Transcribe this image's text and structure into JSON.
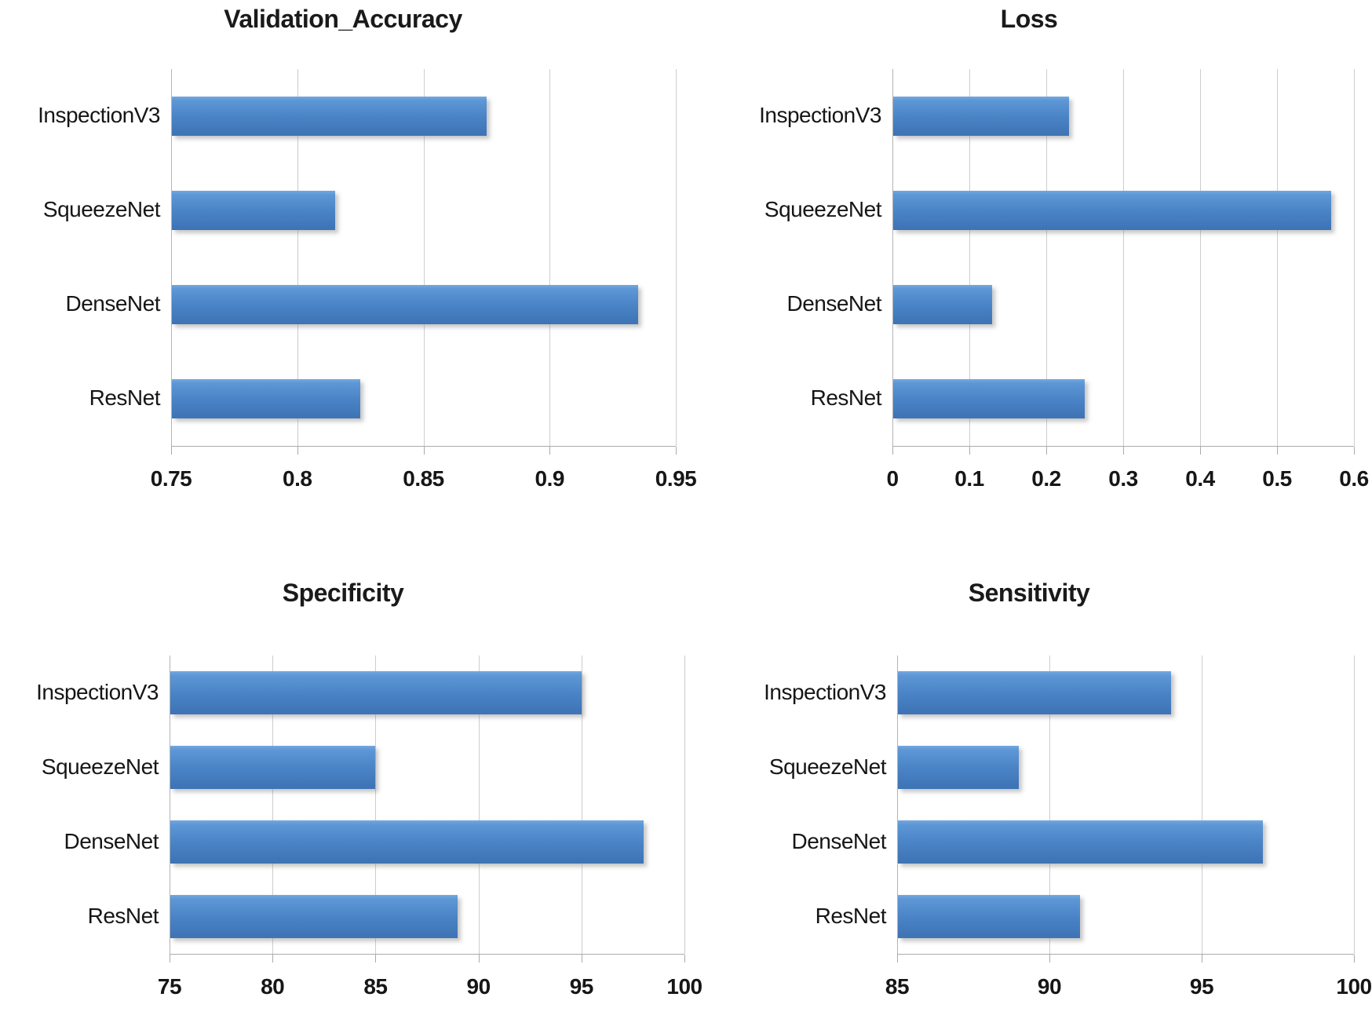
{
  "page_background": "#FFFFFF",
  "colors": {
    "bar_fill_top": "#74A8DE",
    "bar_fill_mid": "#4A84C6",
    "bar_fill_bottom": "#3E74B4",
    "gridline": "#CDCDCD",
    "axis_line": "#ABABAB",
    "text": "#1A1A1A"
  },
  "chart_data": [
    {
      "type": "bar",
      "orientation": "horizontal",
      "title": "Validation_Accuracy",
      "categories": [
        "InspectionV3",
        "SqueezeNet",
        "DenseNet",
        "ResNet"
      ],
      "values": [
        0.875,
        0.815,
        0.935,
        0.825
      ],
      "xlim": [
        0.75,
        0.95
      ],
      "tick_values": [
        0.75,
        0.8,
        0.85,
        0.9,
        0.95
      ],
      "tick_labels": [
        "0.75",
        "0.8",
        "0.85",
        "0.9",
        "0.95"
      ],
      "xlabel": "",
      "ylabel": "",
      "grid": "vertical",
      "legend": "none"
    },
    {
      "type": "bar",
      "orientation": "horizontal",
      "title": "Loss",
      "categories": [
        "InspectionV3",
        "SqueezeNet",
        "DenseNet",
        "ResNet"
      ],
      "values": [
        0.23,
        0.57,
        0.13,
        0.25
      ],
      "xlim": [
        0,
        0.6
      ],
      "tick_values": [
        0,
        0.1,
        0.2,
        0.3,
        0.4,
        0.5,
        0.6
      ],
      "tick_labels": [
        "0",
        "0.1",
        "0.2",
        "0.3",
        "0.4",
        "0.5",
        "0.6"
      ],
      "xlabel": "",
      "ylabel": "",
      "grid": "vertical",
      "legend": "none"
    },
    {
      "type": "bar",
      "orientation": "horizontal",
      "title": "Specificity",
      "categories": [
        "InspectionV3",
        "SqueezeNet",
        "DenseNet",
        "ResNet"
      ],
      "values": [
        95,
        85,
        98,
        89
      ],
      "xlim": [
        75,
        100
      ],
      "tick_values": [
        75,
        80,
        85,
        90,
        95,
        100
      ],
      "tick_labels": [
        "75",
        "80",
        "85",
        "90",
        "95",
        "100"
      ],
      "xlabel": "",
      "ylabel": "",
      "grid": "vertical",
      "legend": "none"
    },
    {
      "type": "bar",
      "orientation": "horizontal",
      "title": "Sensitivity",
      "categories": [
        "InspectionV3",
        "SqueezeNet",
        "DenseNet",
        "ResNet"
      ],
      "values": [
        94,
        89,
        97,
        91
      ],
      "xlim": [
        85,
        100
      ],
      "tick_values": [
        85,
        90,
        95,
        100
      ],
      "tick_labels": [
        "85",
        "90",
        "95",
        "100"
      ],
      "xlabel": "",
      "ylabel": "",
      "grid": "vertical",
      "legend": "none"
    }
  ]
}
